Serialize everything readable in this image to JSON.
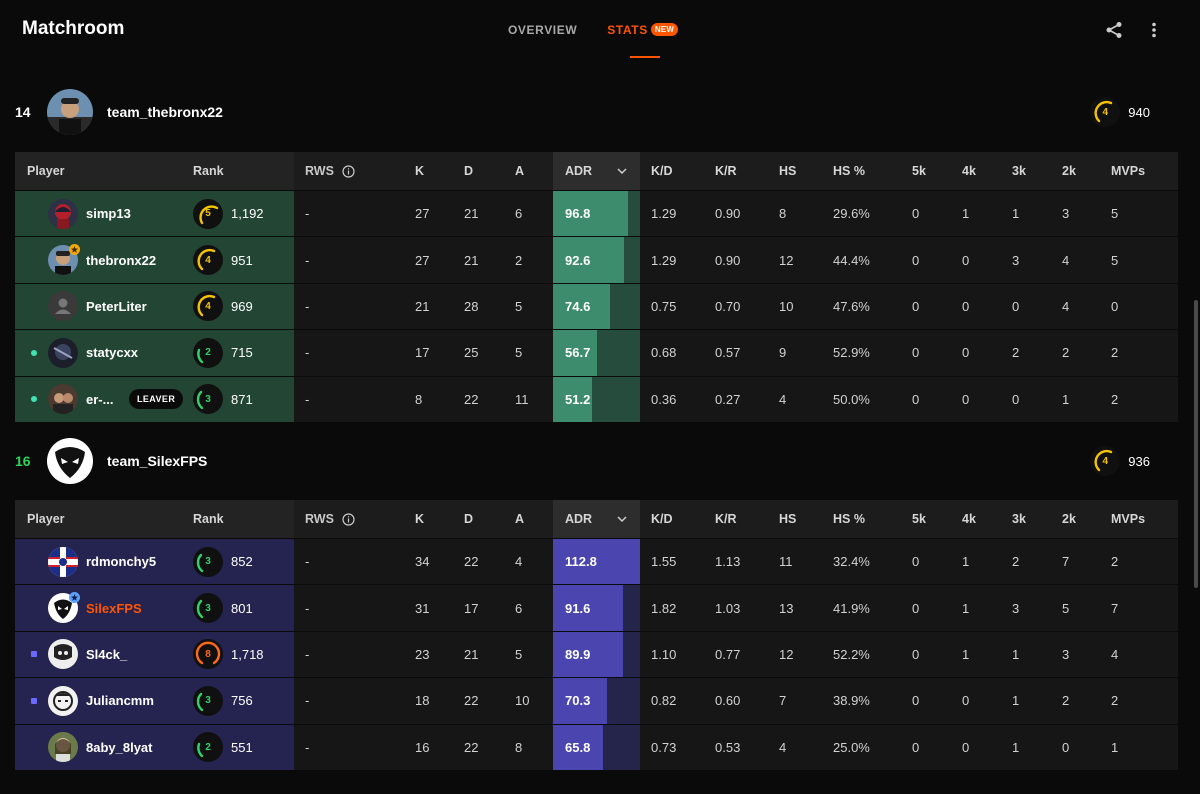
{
  "app": {
    "title": "Matchroom"
  },
  "nav": {
    "tabs": [
      {
        "label": "OVERVIEW"
      },
      {
        "label": "STATS",
        "badge": "NEW"
      }
    ],
    "active": 1
  },
  "colors": {
    "accent": "#ff5500",
    "win": "#32d35a",
    "team1_row": "#234634",
    "team2_row": "#25234f",
    "adr1": "#3d8c6d",
    "adr2": "#4b45b0"
  },
  "icons": {
    "share": "share-icon",
    "more": "more-vertical-icon",
    "info": "info-icon",
    "chevron": "chevron-down-icon"
  },
  "columns": {
    "player": "Player",
    "rank": "Rank",
    "rws": "RWS",
    "k": "K",
    "d": "D",
    "a": "A",
    "adr": "ADR",
    "kd": "K/D",
    "kr": "K/R",
    "hs": "HS",
    "hsp": "HS %",
    "k5": "5k",
    "k4": "4k",
    "k3": "3k",
    "k2": "2k",
    "mvps": "MVPs"
  },
  "teams": [
    {
      "score": "14",
      "name": "team_thebronx22",
      "level": "4",
      "elo": "940",
      "players": [
        {
          "nick": "simp13",
          "level": "5",
          "elo": "1,192",
          "rws": "-",
          "k": "27",
          "d": "21",
          "a": "6",
          "adr": "96.8",
          "adr_fill": 0.86,
          "kd": "1.29",
          "kr": "0.90",
          "hs": "8",
          "hsp": "29.6%",
          "k5": "0",
          "k4": "1",
          "k3": "1",
          "k2": "3",
          "mvps": "5"
        },
        {
          "nick": "thebronx22",
          "level": "4",
          "elo": "951",
          "rws": "-",
          "k": "27",
          "d": "21",
          "a": "2",
          "adr": "92.6",
          "adr_fill": 0.82,
          "kd": "1.29",
          "kr": "0.90",
          "hs": "12",
          "hsp": "44.4%",
          "k5": "0",
          "k4": "0",
          "k3": "3",
          "k2": "4",
          "mvps": "5"
        },
        {
          "nick": "PeterLiter",
          "level": "4",
          "elo": "969",
          "rws": "-",
          "k": "21",
          "d": "28",
          "a": "5",
          "adr": "74.6",
          "adr_fill": 0.66,
          "kd": "0.75",
          "kr": "0.70",
          "hs": "10",
          "hsp": "47.6%",
          "k5": "0",
          "k4": "0",
          "k3": "0",
          "k2": "4",
          "mvps": "0"
        },
        {
          "nick": "statycxx",
          "level": "2",
          "elo": "715",
          "rws": "-",
          "k": "17",
          "d": "25",
          "a": "5",
          "adr": "56.7",
          "adr_fill": 0.5,
          "kd": "0.68",
          "kr": "0.57",
          "hs": "9",
          "hsp": "52.9%",
          "k5": "0",
          "k4": "0",
          "k3": "2",
          "k2": "2",
          "mvps": "2"
        },
        {
          "nick": "er-...",
          "leaver": "LEAVER",
          "level": "3",
          "elo": "871",
          "rws": "-",
          "k": "8",
          "d": "22",
          "a": "11",
          "adr": "51.2",
          "adr_fill": 0.45,
          "kd": "0.36",
          "kr": "0.27",
          "hs": "4",
          "hsp": "50.0%",
          "k5": "0",
          "k4": "0",
          "k3": "0",
          "k2": "1",
          "mvps": "2"
        }
      ]
    },
    {
      "score": "16",
      "name": "team_SilexFPS",
      "level": "4",
      "elo": "936",
      "players": [
        {
          "nick": "rdmonchy5",
          "level": "3",
          "elo": "852",
          "rws": "-",
          "k": "34",
          "d": "22",
          "a": "4",
          "adr": "112.8",
          "adr_fill": 1.0,
          "kd": "1.55",
          "kr": "1.13",
          "hs": "11",
          "hsp": "32.4%",
          "k5": "0",
          "k4": "1",
          "k3": "2",
          "k2": "7",
          "mvps": "2"
        },
        {
          "nick": "SilexFPS",
          "level": "3",
          "elo": "801",
          "rws": "-",
          "k": "31",
          "d": "17",
          "a": "6",
          "adr": "91.6",
          "adr_fill": 0.81,
          "kd": "1.82",
          "kr": "1.03",
          "hs": "13",
          "hsp": "41.9%",
          "k5": "0",
          "k4": "1",
          "k3": "3",
          "k2": "5",
          "mvps": "7"
        },
        {
          "nick": "Sl4ck_",
          "level": "8",
          "elo": "1,718",
          "rws": "-",
          "k": "23",
          "d": "21",
          "a": "5",
          "adr": "89.9",
          "adr_fill": 0.8,
          "kd": "1.10",
          "kr": "0.77",
          "hs": "12",
          "hsp": "52.2%",
          "k5": "0",
          "k4": "1",
          "k3": "1",
          "k2": "3",
          "mvps": "4"
        },
        {
          "nick": "Juliancmm",
          "level": "3",
          "elo": "756",
          "rws": "-",
          "k": "18",
          "d": "22",
          "a": "10",
          "adr": "70.3",
          "adr_fill": 0.62,
          "kd": "0.82",
          "kr": "0.60",
          "hs": "7",
          "hsp": "38.9%",
          "k5": "0",
          "k4": "0",
          "k3": "1",
          "k2": "2",
          "mvps": "2"
        },
        {
          "nick": "8aby_8lyat",
          "level": "2",
          "elo": "551",
          "rws": "-",
          "k": "16",
          "d": "22",
          "a": "8",
          "adr": "65.8",
          "adr_fill": 0.58,
          "kd": "0.73",
          "kr": "0.53",
          "hs": "4",
          "hsp": "25.0%",
          "k5": "0",
          "k4": "0",
          "k3": "1",
          "k2": "0",
          "mvps": "1"
        }
      ]
    }
  ]
}
